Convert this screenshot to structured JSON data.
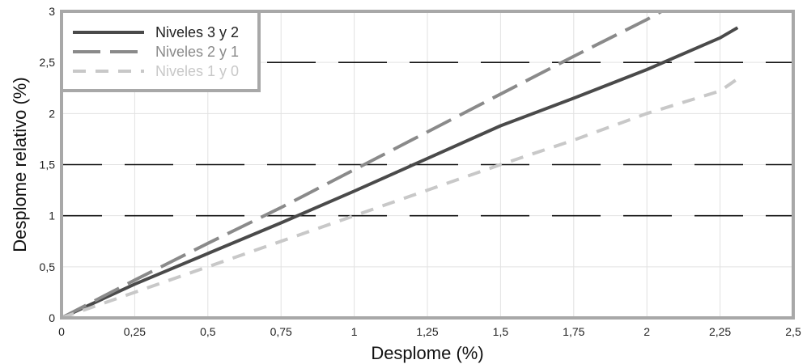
{
  "chart_data": {
    "type": "line",
    "xlabel": "Desplome (%)",
    "ylabel": "Desplome relativo (%)",
    "xlim": [
      0,
      2.5
    ],
    "ylim": [
      0,
      3
    ],
    "x_ticks": [
      "0",
      "0,25",
      "0,5",
      "0,75",
      "1",
      "1,25",
      "1,5",
      "1,75",
      "2",
      "2,25",
      "2,5"
    ],
    "y_ticks": [
      "0",
      "0,5",
      "1",
      "1,5",
      "2",
      "2,5",
      "3"
    ],
    "grid": "minor vertical/horizontal light grid",
    "reference_lines": [
      1,
      1.5,
      2.5
    ],
    "legend_position": "top-left",
    "series": [
      {
        "name": "Niveles 3 y 2",
        "color": "#4a4a4a",
        "style": "solid",
        "points": [
          [
            0,
            0
          ],
          [
            0.25,
            0.33
          ],
          [
            0.5,
            0.63
          ],
          [
            0.75,
            0.93
          ],
          [
            1,
            1.24
          ],
          [
            1.25,
            1.56
          ],
          [
            1.5,
            1.88
          ],
          [
            1.75,
            2.15
          ],
          [
            2,
            2.43
          ],
          [
            2.25,
            2.74
          ],
          [
            2.31,
            2.84
          ]
        ]
      },
      {
        "name": "Niveles 2 y 1",
        "color": "#8a8a8a",
        "style": "long-dash",
        "points": [
          [
            0,
            0
          ],
          [
            0.25,
            0.37
          ],
          [
            0.5,
            0.73
          ],
          [
            0.75,
            1.08
          ],
          [
            1,
            1.45
          ],
          [
            1.25,
            1.82
          ],
          [
            1.5,
            2.19
          ],
          [
            1.75,
            2.56
          ],
          [
            2,
            2.92
          ],
          [
            2.05,
            3.0
          ]
        ]
      },
      {
        "name": "Niveles 1 y 0",
        "color": "#c8c8c8",
        "style": "short-dash",
        "points": [
          [
            0,
            0
          ],
          [
            0.25,
            0.25
          ],
          [
            0.5,
            0.5
          ],
          [
            0.75,
            0.75
          ],
          [
            1,
            1.0
          ],
          [
            1.25,
            1.25
          ],
          [
            1.5,
            1.5
          ],
          [
            1.75,
            1.74
          ],
          [
            2,
            2.0
          ],
          [
            2.25,
            2.22
          ],
          [
            2.32,
            2.36
          ]
        ]
      }
    ]
  }
}
